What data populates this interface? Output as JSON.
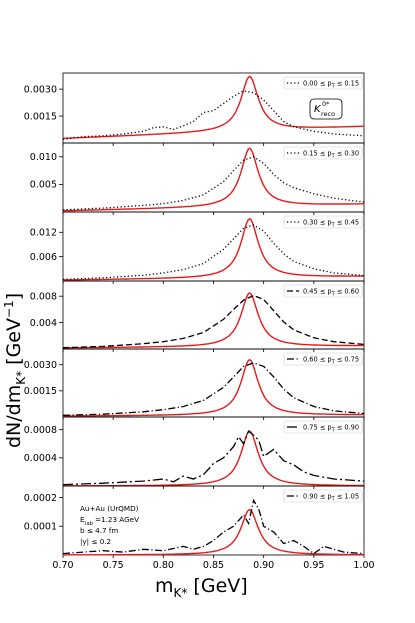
{
  "chart_data": {
    "type": "line",
    "xlabel": "m",
    "xlabel_sub": "K*",
    "xlabel_unit": " [GeV]",
    "ylabel": "dN/dm",
    "ylabel_sub": "K*",
    "ylabel_unit": " [GeV",
    "ylabel_exp": "−1",
    "ylabel_close": "]",
    "xlim": [
      0.7,
      1.0
    ],
    "xticks": [
      "0.70",
      "0.75",
      "0.80",
      "0.85",
      "0.90",
      "0.95",
      "1.00"
    ],
    "peak_x": 0.886,
    "fit_color": "#e8191a",
    "data_color": "#000000",
    "badge": {
      "main": "K",
      "sup": "0*",
      "sub": "reco"
    },
    "annotation": [
      "Au+Au (UrQMD)",
      "E",
      "lab",
      "=1.23 AGeV",
      "b ≤ 4.7 fm",
      "|y| ≤ 0.2"
    ],
    "panels": [
      {
        "legend": "0.00 ≤ p",
        "legend_sub": "T",
        "legend_tail": " ≤ 0.15",
        "linestyle": "dotted",
        "ylim": [
          0.0,
          0.0039
        ],
        "yticks": [
          0.0015,
          0.003
        ],
        "ytick_labels": [
          "0.0015",
          "0.0030"
        ],
        "fit": {
          "peak": 0.0033,
          "width": 0.0105,
          "base": 0.00025,
          "slope": 0.0022
        },
        "data": [
          [
            0.7,
            0.0002
          ],
          [
            0.72,
            0.00035
          ],
          [
            0.74,
            0.0004
          ],
          [
            0.76,
            0.0005
          ],
          [
            0.78,
            0.00065
          ],
          [
            0.79,
            0.00085
          ],
          [
            0.8,
            0.0009
          ],
          [
            0.81,
            0.00075
          ],
          [
            0.82,
            0.00095
          ],
          [
            0.83,
            0.0012
          ],
          [
            0.84,
            0.0017
          ],
          [
            0.85,
            0.0018
          ],
          [
            0.86,
            0.0022
          ],
          [
            0.87,
            0.0026
          ],
          [
            0.88,
            0.0029
          ],
          [
            0.89,
            0.0028
          ],
          [
            0.9,
            0.0024
          ],
          [
            0.91,
            0.0018
          ],
          [
            0.92,
            0.0012
          ],
          [
            0.93,
            0.0009
          ],
          [
            0.95,
            0.00065
          ],
          [
            0.97,
            0.0005
          ],
          [
            1.0,
            0.0004
          ]
        ]
      },
      {
        "legend": "0.15 ≤ p",
        "legend_sub": "T",
        "legend_tail": " ≤ 0.30",
        "linestyle": "dotted",
        "ylim": [
          0.0,
          0.0125
        ],
        "yticks": [
          0.005,
          0.01
        ],
        "ytick_labels": [
          "0.005",
          "0.010"
        ],
        "fit": {
          "peak": 0.0108,
          "width": 0.0105,
          "base": 0.0002,
          "slope": 0.004
        },
        "data": [
          [
            0.7,
            0.0004
          ],
          [
            0.74,
            0.0007
          ],
          [
            0.78,
            0.0012
          ],
          [
            0.8,
            0.0015
          ],
          [
            0.82,
            0.0021
          ],
          [
            0.84,
            0.0031
          ],
          [
            0.86,
            0.0055
          ],
          [
            0.87,
            0.0075
          ],
          [
            0.88,
            0.0094
          ],
          [
            0.89,
            0.01
          ],
          [
            0.9,
            0.0088
          ],
          [
            0.91,
            0.0068
          ],
          [
            0.92,
            0.0053
          ],
          [
            0.93,
            0.0044
          ],
          [
            0.95,
            0.0033
          ],
          [
            0.97,
            0.0025
          ],
          [
            1.0,
            0.0018
          ]
        ]
      },
      {
        "legend": "0.30 ≤ p",
        "legend_sub": "T",
        "legend_tail": " ≤ 0.45",
        "linestyle": "dotted",
        "ylim": [
          0.0,
          0.017
        ],
        "yticks": [
          0.006,
          0.012
        ],
        "ytick_labels": [
          "0.006",
          "0.012"
        ],
        "fit": {
          "peak": 0.0148,
          "width": 0.0105,
          "base": 0.0002,
          "slope": 0.003
        },
        "data": [
          [
            0.7,
            0.0004
          ],
          [
            0.74,
            0.0008
          ],
          [
            0.78,
            0.0014
          ],
          [
            0.8,
            0.002
          ],
          [
            0.82,
            0.0028
          ],
          [
            0.84,
            0.0043
          ],
          [
            0.86,
            0.0078
          ],
          [
            0.87,
            0.0104
          ],
          [
            0.88,
            0.013
          ],
          [
            0.89,
            0.0138
          ],
          [
            0.9,
            0.0123
          ],
          [
            0.91,
            0.0093
          ],
          [
            0.92,
            0.0067
          ],
          [
            0.93,
            0.0048
          ],
          [
            0.95,
            0.003
          ],
          [
            0.97,
            0.002
          ],
          [
            1.0,
            0.0013
          ]
        ]
      },
      {
        "legend": "0.45 ≤ p",
        "legend_sub": "T",
        "legend_tail": " ≤ 0.60",
        "linestyle": "dashed",
        "ylim": [
          0.0,
          0.0103
        ],
        "yticks": [
          0.004,
          0.008
        ],
        "ytick_labels": [
          "0.004",
          "0.008"
        ],
        "fit": {
          "peak": 0.0083,
          "width": 0.0105,
          "base": 0.00015,
          "slope": 0.001
        },
        "data": [
          [
            0.7,
            0.0002
          ],
          [
            0.74,
            0.0004
          ],
          [
            0.78,
            0.0008
          ],
          [
            0.8,
            0.0011
          ],
          [
            0.82,
            0.0016
          ],
          [
            0.84,
            0.0025
          ],
          [
            0.86,
            0.0045
          ],
          [
            0.87,
            0.006
          ],
          [
            0.88,
            0.0074
          ],
          [
            0.89,
            0.0081
          ],
          [
            0.9,
            0.0075
          ],
          [
            0.91,
            0.0058
          ],
          [
            0.92,
            0.0041
          ],
          [
            0.93,
            0.0029
          ],
          [
            0.95,
            0.0017
          ],
          [
            0.97,
            0.0011
          ],
          [
            1.0,
            0.0007
          ]
        ]
      },
      {
        "legend": "0.60 ≤ p",
        "legend_sub": "T",
        "legend_tail": " ≤ 0.75",
        "linestyle": "dashdot",
        "ylim": [
          0.0,
          0.0039
        ],
        "yticks": [
          0.0015,
          0.003
        ],
        "ytick_labels": [
          "0.0015",
          "0.0030"
        ],
        "fit": {
          "peak": 0.00325,
          "width": 0.0105,
          "base": 5e-05,
          "slope": 0.0002
        },
        "data": [
          [
            0.7,
            0.0001
          ],
          [
            0.74,
            0.00016
          ],
          [
            0.78,
            0.0003
          ],
          [
            0.8,
            0.00042
          ],
          [
            0.82,
            0.0006
          ],
          [
            0.84,
            0.00095
          ],
          [
            0.86,
            0.0017
          ],
          [
            0.87,
            0.0023
          ],
          [
            0.88,
            0.0029
          ],
          [
            0.89,
            0.0031
          ],
          [
            0.9,
            0.0029
          ],
          [
            0.91,
            0.0023
          ],
          [
            0.92,
            0.0016
          ],
          [
            0.93,
            0.0011
          ],
          [
            0.95,
            0.0006
          ],
          [
            0.97,
            0.00035
          ],
          [
            1.0,
            0.0002
          ]
        ]
      },
      {
        "legend": "0.75 ≤ p",
        "legend_sub": "T",
        "legend_tail": " ≤ 0.90",
        "linestyle": "longdash",
        "ylim": [
          0.0,
          0.00098
        ],
        "yticks": [
          0.0004,
          0.0008
        ],
        "ytick_labels": [
          "0.0004",
          "0.0008"
        ],
        "fit": {
          "peak": 0.00078,
          "width": 0.0105,
          "base": 0.0,
          "slope": 0.0
        },
        "data": [
          [
            0.7,
            2e-05
          ],
          [
            0.74,
            4e-05
          ],
          [
            0.78,
            7e-05
          ],
          [
            0.8,
            0.0001
          ],
          [
            0.81,
            6e-05
          ],
          [
            0.82,
            0.00014
          ],
          [
            0.83,
            0.0001
          ],
          [
            0.84,
            0.00016
          ],
          [
            0.85,
            0.00032
          ],
          [
            0.86,
            0.0004
          ],
          [
            0.87,
            0.00056
          ],
          [
            0.875,
            0.0007
          ],
          [
            0.88,
            0.0006
          ],
          [
            0.885,
            0.00078
          ],
          [
            0.89,
            0.00072
          ],
          [
            0.895,
            0.00065
          ],
          [
            0.9,
            0.00042
          ],
          [
            0.91,
            0.00052
          ],
          [
            0.92,
            0.00036
          ],
          [
            0.93,
            0.0003
          ],
          [
            0.94,
            0.0002
          ],
          [
            0.95,
            0.00015
          ],
          [
            0.97,
            0.0001
          ],
          [
            1.0,
            7e-05
          ]
        ]
      },
      {
        "legend": "0.90 ≤ p",
        "legend_sub": "T",
        "legend_tail": " ≤ 1.05",
        "linestyle": "dashdot",
        "ylim": [
          0.0,
          0.00024
        ],
        "yticks": [
          0.0001,
          0.0002
        ],
        "ytick_labels": [
          "0.0001",
          "0.0002"
        ],
        "fit": {
          "peak": 0.000158,
          "width": 0.0105,
          "base": 0.0,
          "slope": 0.0
        },
        "data": [
          [
            0.7,
            5e-06
          ],
          [
            0.72,
            1e-05
          ],
          [
            0.74,
            1.5e-05
          ],
          [
            0.76,
            1e-05
          ],
          [
            0.78,
            2e-05
          ],
          [
            0.8,
            1.5e-05
          ],
          [
            0.82,
            3e-05
          ],
          [
            0.83,
            2e-05
          ],
          [
            0.84,
            3e-05
          ],
          [
            0.85,
            5e-05
          ],
          [
            0.86,
            8e-05
          ],
          [
            0.87,
            0.0001
          ],
          [
            0.88,
            0.00014
          ],
          [
            0.885,
            0.00011
          ],
          [
            0.89,
            0.00019
          ],
          [
            0.895,
            0.00016
          ],
          [
            0.9,
            0.0001
          ],
          [
            0.91,
            8e-05
          ],
          [
            0.92,
            4e-05
          ],
          [
            0.93,
            5e-05
          ],
          [
            0.94,
            3e-05
          ],
          [
            0.95,
            5e-06
          ],
          [
            0.96,
            3e-05
          ],
          [
            0.97,
            2e-05
          ],
          [
            0.98,
            1e-05
          ],
          [
            1.0,
            5e-06
          ]
        ]
      }
    ]
  }
}
